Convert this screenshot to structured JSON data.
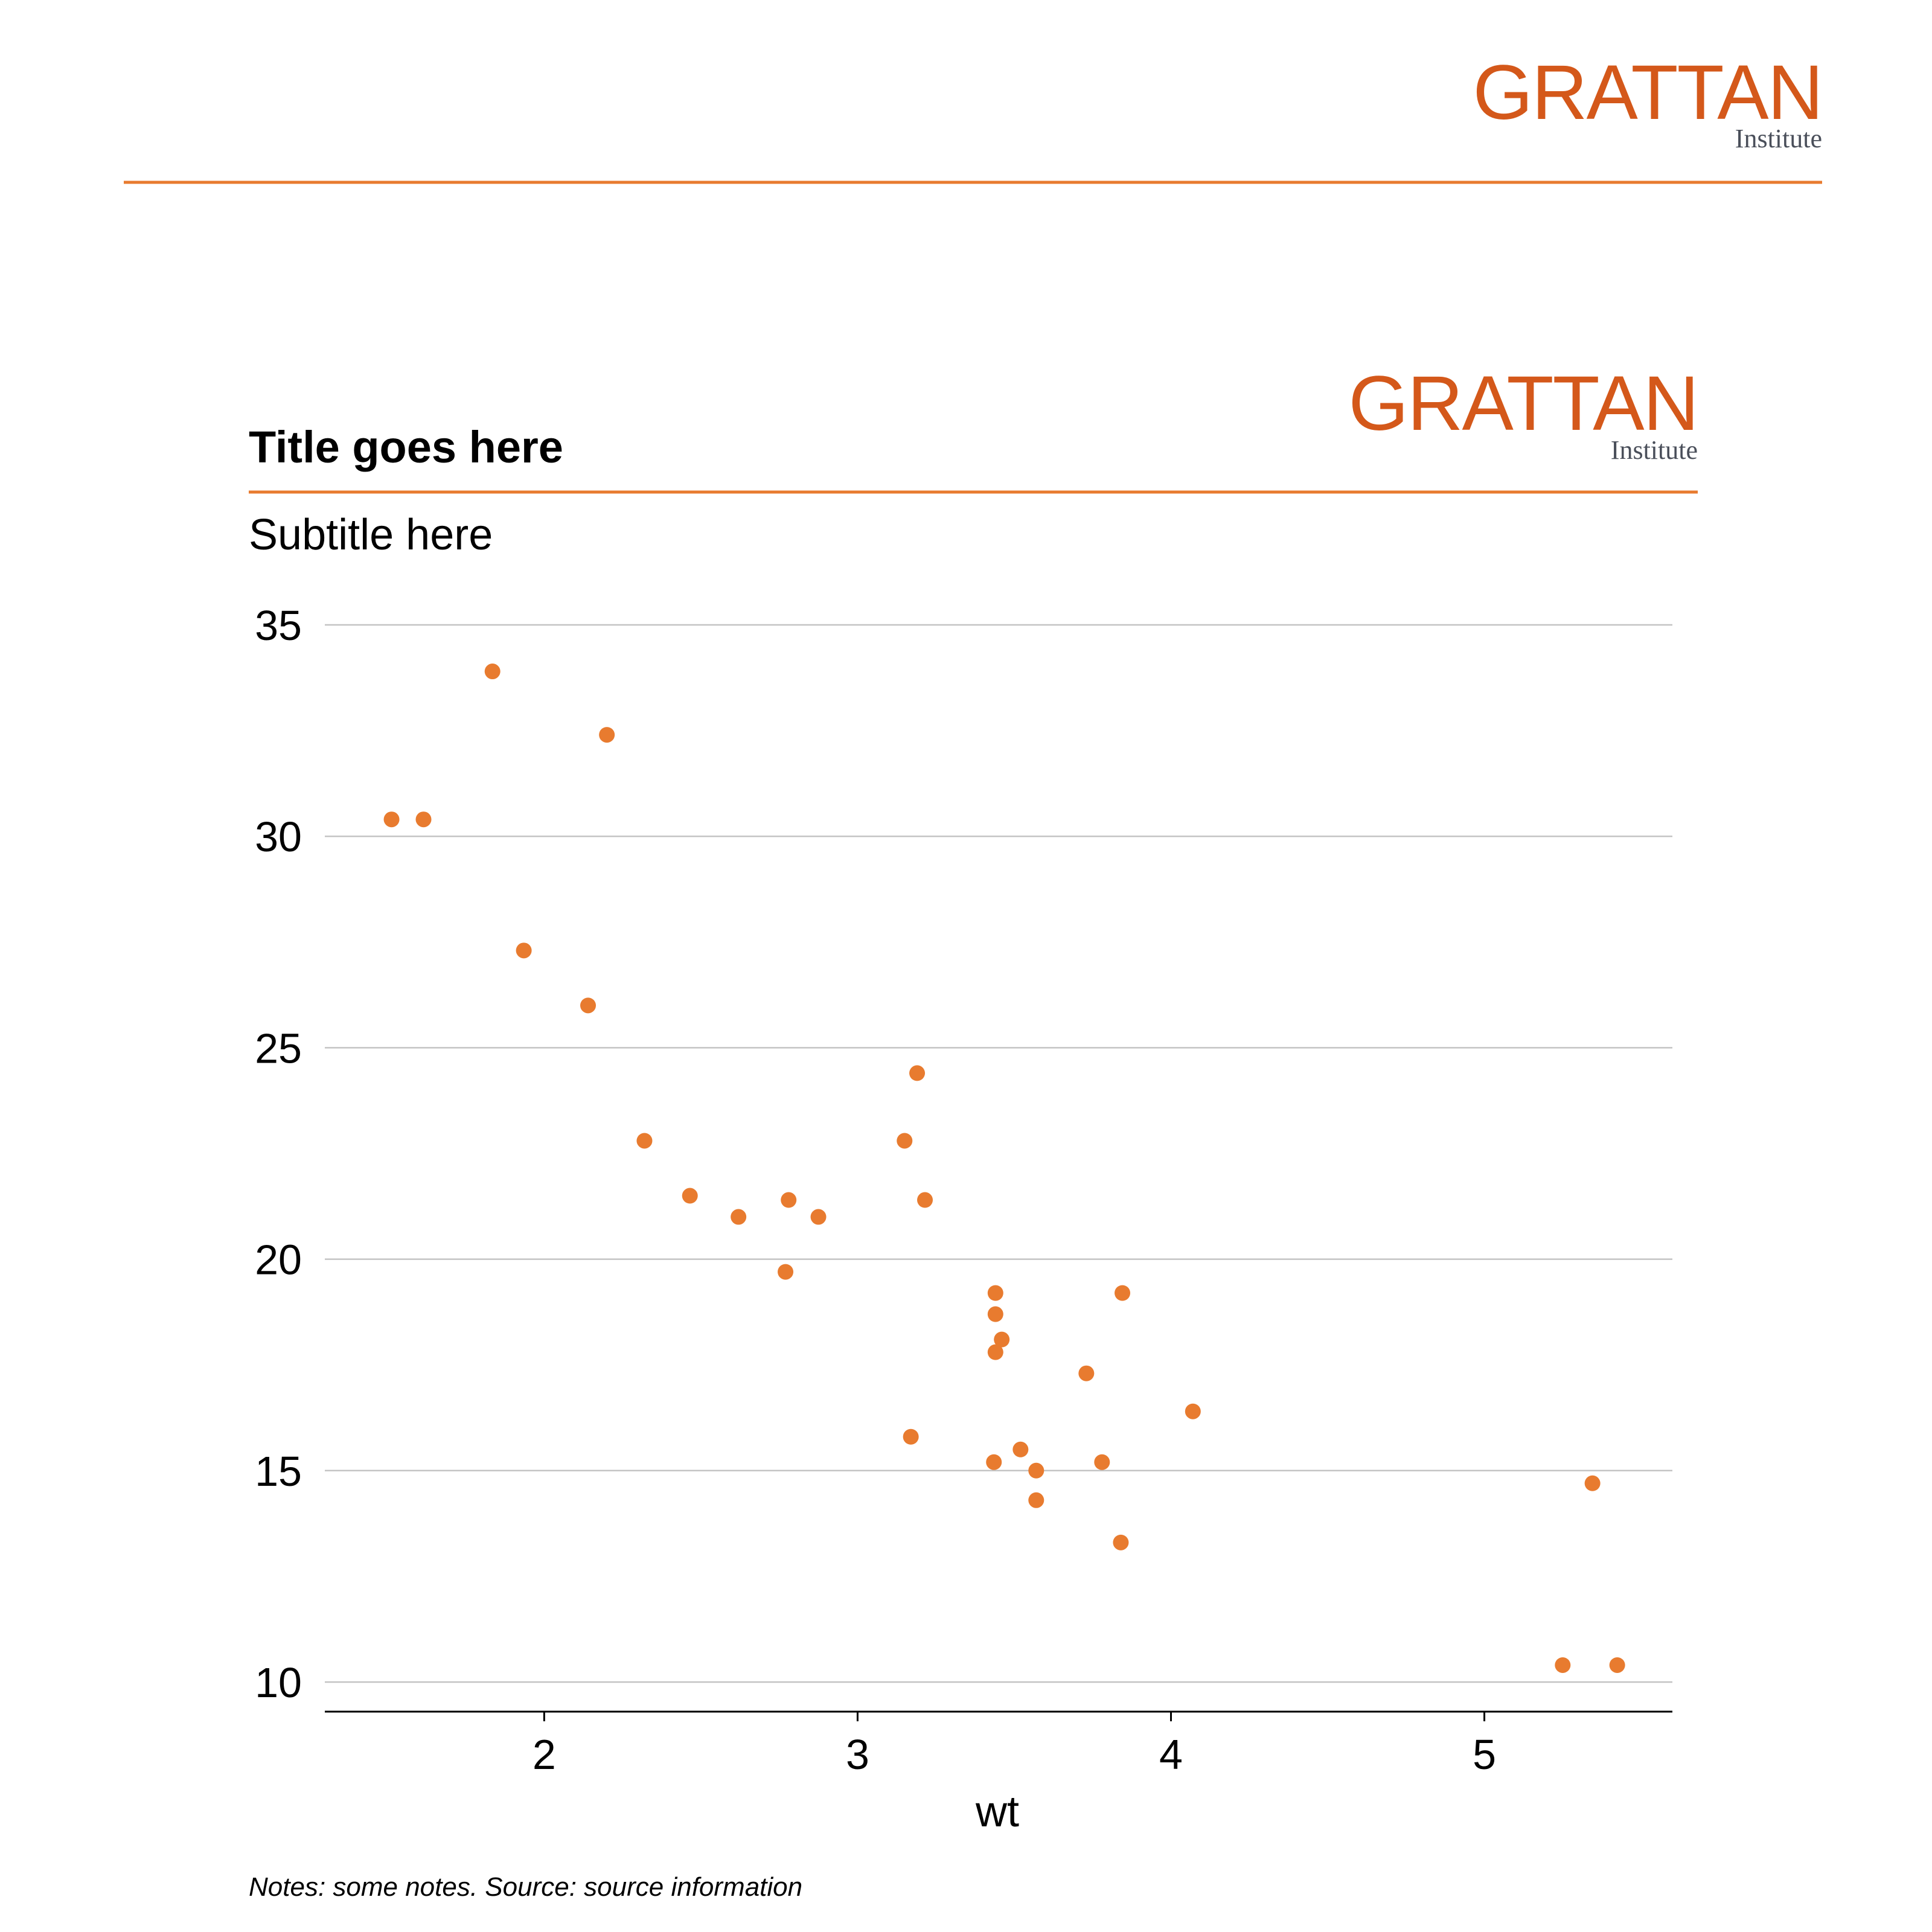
{
  "colors": {
    "accent": "#E87B2F",
    "logo_text": "#D4581A",
    "logo_sub": "#4A4F5A",
    "grid": "#C4C4C4",
    "text": "#000000"
  },
  "page_logo": {
    "word": "GRATTAN",
    "sub": "Institute"
  },
  "chart_logo": {
    "word": "GRATTAN",
    "sub": "Institute"
  },
  "chart_data": {
    "type": "scatter",
    "title": "Title goes here",
    "subtitle": "Subtitle here",
    "xlabel": "wt",
    "ylabel": "",
    "notes": "Notes: some notes. Source: source information",
    "xlim": [
      1.3,
      5.6
    ],
    "ylim": [
      9.3,
      35.5
    ],
    "xticks": [
      2,
      3,
      4,
      5
    ],
    "yticks": [
      10,
      15,
      20,
      25,
      30,
      35
    ],
    "grid": "horizontal",
    "points": [
      {
        "x": 1.513,
        "y": 30.4
      },
      {
        "x": 1.615,
        "y": 30.4
      },
      {
        "x": 1.835,
        "y": 33.9
      },
      {
        "x": 1.935,
        "y": 27.3
      },
      {
        "x": 2.14,
        "y": 26.0
      },
      {
        "x": 2.2,
        "y": 32.4
      },
      {
        "x": 2.32,
        "y": 22.8
      },
      {
        "x": 2.465,
        "y": 21.5
      },
      {
        "x": 2.62,
        "y": 21.0
      },
      {
        "x": 2.77,
        "y": 19.7
      },
      {
        "x": 2.78,
        "y": 21.4
      },
      {
        "x": 2.875,
        "y": 21.0
      },
      {
        "x": 3.15,
        "y": 22.8
      },
      {
        "x": 3.17,
        "y": 15.8
      },
      {
        "x": 3.19,
        "y": 24.4
      },
      {
        "x": 3.215,
        "y": 21.4
      },
      {
        "x": 3.435,
        "y": 15.2
      },
      {
        "x": 3.44,
        "y": 19.2
      },
      {
        "x": 3.44,
        "y": 18.7
      },
      {
        "x": 3.44,
        "y": 17.8
      },
      {
        "x": 3.46,
        "y": 18.1
      },
      {
        "x": 3.52,
        "y": 15.5
      },
      {
        "x": 3.57,
        "y": 15.0
      },
      {
        "x": 3.57,
        "y": 14.3
      },
      {
        "x": 3.73,
        "y": 17.3
      },
      {
        "x": 3.78,
        "y": 15.2
      },
      {
        "x": 3.84,
        "y": 13.3
      },
      {
        "x": 3.845,
        "y": 19.2
      },
      {
        "x": 4.07,
        "y": 16.4
      },
      {
        "x": 5.25,
        "y": 10.4
      },
      {
        "x": 5.345,
        "y": 14.7
      },
      {
        "x": 5.424,
        "y": 10.4
      }
    ]
  }
}
